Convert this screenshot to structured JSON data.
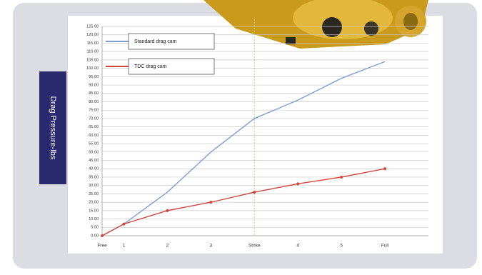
{
  "chart_data": {
    "type": "line",
    "y_axis_label": "Drag Pressure-lbs",
    "categories": [
      "Free",
      "1",
      "2",
      "3",
      "Strike",
      "4",
      "5",
      "Full"
    ],
    "series": [
      {
        "name": "Standard drag cam",
        "color": "#7e9fd4",
        "markers": false,
        "values": [
          0,
          7,
          26,
          50,
          70,
          81,
          94,
          104
        ]
      },
      {
        "name": "TDC  drag cam",
        "color": "#d2453c",
        "markers": true,
        "values": [
          0,
          7,
          15,
          20,
          26,
          31,
          35,
          40
        ]
      }
    ],
    "ylim": [
      0,
      125
    ],
    "yticks": [
      {
        "value": 0,
        "label": "0.00"
      },
      {
        "value": 5,
        "label": "5.00"
      },
      {
        "value": 10,
        "label": "10.00"
      },
      {
        "value": 15,
        "label": "15.00"
      },
      {
        "value": 20,
        "label": "20.00"
      },
      {
        "value": 25,
        "label": "25.00"
      },
      {
        "value": 30,
        "label": "30.00"
      },
      {
        "value": 35,
        "label": "35.00"
      },
      {
        "value": 40,
        "label": "40.00"
      },
      {
        "value": 45,
        "label": "45.00"
      },
      {
        "value": 50,
        "label": "50.00"
      },
      {
        "value": 55,
        "label": "55.00"
      },
      {
        "value": 60,
        "label": "60.00"
      },
      {
        "value": 65,
        "label": "65.00"
      },
      {
        "value": 70,
        "label": "70.00"
      },
      {
        "value": 75,
        "label": "75.00"
      },
      {
        "value": 80,
        "label": "80.00"
      },
      {
        "value": 85,
        "label": "85.00"
      },
      {
        "value": 90,
        "label": "90.00"
      },
      {
        "value": 95,
        "label": "95.00"
      },
      {
        "value": 100,
        "label": "100.00"
      },
      {
        "value": 105,
        "label": "105.00"
      },
      {
        "value": 110,
        "label": "110.00"
      },
      {
        "value": 115,
        "label": "115.00"
      },
      {
        "value": 120,
        "label": "120.00"
      },
      {
        "value": 125,
        "label": "125.00"
      }
    ],
    "grid": true,
    "vertical_marker": "Strike"
  }
}
